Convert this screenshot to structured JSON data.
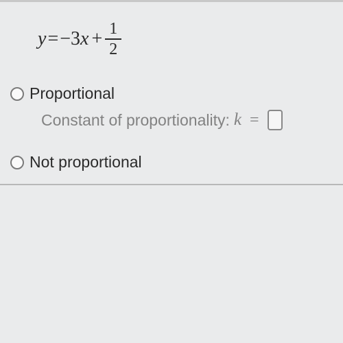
{
  "colors": {
    "background": "#eaebec",
    "text_primary": "#2a2a2a",
    "text_secondary": "#828282",
    "border": "#b8b8b8",
    "radio_border": "#7a7a7a",
    "input_border": "#888"
  },
  "equation": {
    "lhs": "y",
    "eq": "=",
    "rhs_coef_sign": "−",
    "rhs_coef": "3",
    "rhs_var": "x",
    "rhs_op": "+",
    "rhs_frac_num": "1",
    "rhs_frac_den": "2"
  },
  "options": {
    "proportional": {
      "label": "Proportional",
      "selected": false,
      "sub": {
        "text": "Constant of proportionality:",
        "var": "k",
        "eq": "=",
        "value": ""
      }
    },
    "not_proportional": {
      "label": "Not proportional",
      "selected": false
    }
  },
  "typography": {
    "equation_fontsize": 28,
    "label_fontsize": 23,
    "sublabel_fontsize": 23
  }
}
